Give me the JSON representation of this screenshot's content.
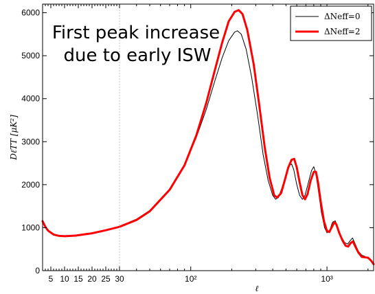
{
  "chart_data": {
    "type": "line",
    "title": "",
    "xlabel": "ℓ",
    "ylabel": "DℓTT [μK²]",
    "xscale": "linear-below-30-then-log",
    "xlim": [
      2,
      2200
    ],
    "ylim": [
      0,
      6200
    ],
    "grid": false,
    "legend_position": "top-right",
    "x_tick_labels": [
      "5",
      "10",
      "15",
      "20",
      "25",
      "30",
      "10²",
      "10³"
    ],
    "y_tick_labels": [
      "0",
      "1000",
      "2000",
      "3000",
      "4000",
      "5000",
      "6000"
    ],
    "annotation": [
      "First peak increase",
      "due to early ISW"
    ],
    "reference_line_x": 30,
    "series": [
      {
        "name": "ΔNeff=0",
        "color": "#000000",
        "points": [
          [
            2,
            1120
          ],
          [
            3,
            1000
          ],
          [
            4,
            920
          ],
          [
            6,
            840
          ],
          [
            8,
            810
          ],
          [
            10,
            805
          ],
          [
            14,
            820
          ],
          [
            20,
            880
          ],
          [
            25,
            950
          ],
          [
            30,
            1030
          ],
          [
            40,
            1200
          ],
          [
            50,
            1400
          ],
          [
            70,
            1900
          ],
          [
            90,
            2450
          ],
          [
            110,
            3100
          ],
          [
            130,
            3750
          ],
          [
            150,
            4400
          ],
          [
            170,
            4950
          ],
          [
            190,
            5350
          ],
          [
            210,
            5550
          ],
          [
            220,
            5580
          ],
          [
            235,
            5500
          ],
          [
            255,
            5150
          ],
          [
            280,
            4500
          ],
          [
            310,
            3600
          ],
          [
            340,
            2700
          ],
          [
            370,
            2100
          ],
          [
            400,
            1750
          ],
          [
            420,
            1660
          ],
          [
            440,
            1700
          ],
          [
            470,
            1950
          ],
          [
            500,
            2250
          ],
          [
            530,
            2450
          ],
          [
            550,
            2480
          ],
          [
            570,
            2350
          ],
          [
            600,
            2000
          ],
          [
            630,
            1750
          ],
          [
            660,
            1660
          ],
          [
            690,
            1750
          ],
          [
            730,
            2050
          ],
          [
            770,
            2330
          ],
          [
            800,
            2420
          ],
          [
            830,
            2250
          ],
          [
            870,
            1800
          ],
          [
            910,
            1350
          ],
          [
            960,
            1000
          ],
          [
            1000,
            880
          ],
          [
            1050,
            950
          ],
          [
            1100,
            1130
          ],
          [
            1150,
            1160
          ],
          [
            1200,
            1000
          ],
          [
            1280,
            780
          ],
          [
            1350,
            650
          ],
          [
            1420,
            620
          ],
          [
            1480,
            700
          ],
          [
            1540,
            760
          ],
          [
            1600,
            640
          ],
          [
            1700,
            450
          ],
          [
            1800,
            360
          ],
          [
            1900,
            330
          ],
          [
            2000,
            280
          ],
          [
            2100,
            230
          ],
          [
            2200,
            180
          ]
        ]
      },
      {
        "name": "ΔNeff=2",
        "color": "#ff0000",
        "points": [
          [
            2,
            1150
          ],
          [
            3,
            1020
          ],
          [
            4,
            930
          ],
          [
            6,
            840
          ],
          [
            8,
            808
          ],
          [
            10,
            800
          ],
          [
            14,
            815
          ],
          [
            20,
            870
          ],
          [
            25,
            940
          ],
          [
            30,
            1020
          ],
          [
            40,
            1180
          ],
          [
            50,
            1380
          ],
          [
            70,
            1880
          ],
          [
            90,
            2450
          ],
          [
            110,
            3150
          ],
          [
            130,
            3900
          ],
          [
            150,
            4650
          ],
          [
            170,
            5300
          ],
          [
            190,
            5800
          ],
          [
            210,
            6020
          ],
          [
            225,
            6060
          ],
          [
            240,
            5970
          ],
          [
            260,
            5600
          ],
          [
            290,
            4800
          ],
          [
            320,
            3800
          ],
          [
            350,
            2850
          ],
          [
            380,
            2150
          ],
          [
            410,
            1750
          ],
          [
            430,
            1700
          ],
          [
            460,
            1800
          ],
          [
            490,
            2100
          ],
          [
            520,
            2400
          ],
          [
            550,
            2580
          ],
          [
            575,
            2600
          ],
          [
            600,
            2400
          ],
          [
            630,
            2050
          ],
          [
            660,
            1760
          ],
          [
            690,
            1660
          ],
          [
            720,
            1780
          ],
          [
            760,
            2100
          ],
          [
            800,
            2300
          ],
          [
            830,
            2300
          ],
          [
            860,
            2050
          ],
          [
            900,
            1600
          ],
          [
            950,
            1150
          ],
          [
            1000,
            920
          ],
          [
            1040,
            900
          ],
          [
            1080,
            1000
          ],
          [
            1130,
            1120
          ],
          [
            1170,
            1080
          ],
          [
            1230,
            880
          ],
          [
            1300,
            700
          ],
          [
            1370,
            580
          ],
          [
            1430,
            560
          ],
          [
            1490,
            640
          ],
          [
            1550,
            680
          ],
          [
            1610,
            570
          ],
          [
            1700,
            420
          ],
          [
            1800,
            320
          ],
          [
            1900,
            310
          ],
          [
            2000,
            300
          ],
          [
            2100,
            240
          ],
          [
            2200,
            150
          ]
        ]
      }
    ]
  }
}
